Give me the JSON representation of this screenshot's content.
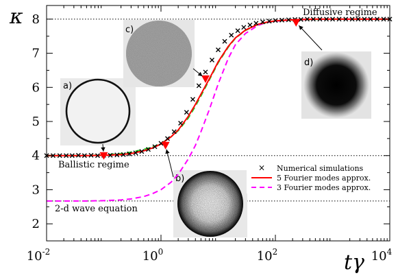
{
  "chart_data": {
    "type": "line",
    "x_scale": "log",
    "xlim": [
      0.01,
      10000
    ],
    "ylim": [
      1.5,
      8.4
    ],
    "xlabel": "tγ",
    "ylabel": "κ",
    "x_ticks": [
      {
        "value": 0.01,
        "base": "10",
        "exp": "-2"
      },
      {
        "value": 1,
        "base": "10",
        "exp": "0"
      },
      {
        "value": 100,
        "base": "10",
        "exp": "2"
      },
      {
        "value": 10000,
        "base": "10",
        "exp": "4"
      }
    ],
    "y_ticks": [
      "2",
      "3",
      "4",
      "5",
      "6",
      "7",
      "8"
    ],
    "reference_lines": [
      {
        "y": 8,
        "label": "Diffusive regime"
      },
      {
        "y": 4,
        "label": "Ballistic regime"
      },
      {
        "y": 2.67,
        "label": "2-d wave equation"
      }
    ],
    "series": [
      {
        "name": "Numerical simulations",
        "marker": "x",
        "color": "#000000",
        "x": [
          0.01,
          0.013,
          0.017,
          0.022,
          0.028,
          0.036,
          0.046,
          0.06,
          0.078,
          0.1,
          0.13,
          0.17,
          0.22,
          0.28,
          0.36,
          0.46,
          0.6,
          0.78,
          1.0,
          1.3,
          1.7,
          2.2,
          2.8,
          3.6,
          4.6,
          6.0,
          7.8,
          10,
          13,
          17,
          22,
          28,
          36,
          46,
          60,
          78,
          100,
          130,
          170,
          220,
          280,
          360,
          460,
          600,
          780,
          1000,
          1300,
          1700,
          2200,
          2800,
          3600,
          4600,
          6000,
          7800,
          10000
        ],
        "y": [
          4.0,
          4.0,
          4.0,
          4.0,
          4.0,
          4.01,
          4.0,
          4.01,
          4.0,
          4.01,
          4.01,
          4.02,
          4.03,
          4.05,
          4.08,
          4.12,
          4.18,
          4.26,
          4.36,
          4.5,
          4.7,
          4.95,
          5.27,
          5.65,
          6.05,
          6.45,
          6.8,
          7.1,
          7.35,
          7.53,
          7.66,
          7.76,
          7.83,
          7.88,
          7.92,
          7.94,
          7.96,
          7.97,
          7.98,
          7.99,
          7.99,
          8.0,
          8.0,
          8.0,
          8.0,
          8.0,
          8.0,
          8.0,
          8.0,
          8.0,
          8.0,
          8.0,
          8.0,
          8.0,
          8.0
        ]
      },
      {
        "name": "5 Fourier modes approx.",
        "style": "solid",
        "color": "#ff0000",
        "x": [
          0.01,
          0.02,
          0.05,
          0.1,
          0.2,
          0.3,
          0.5,
          0.7,
          1.0,
          1.5,
          2.0,
          3.0,
          4.0,
          5.0,
          7.0,
          10,
          15,
          20,
          30,
          50,
          70,
          100,
          200,
          300,
          500,
          1000,
          3000,
          10000
        ],
        "y": [
          4.0,
          4.0,
          4.0,
          4.01,
          4.03,
          4.06,
          4.14,
          4.22,
          4.34,
          4.55,
          4.75,
          5.15,
          5.5,
          5.8,
          6.25,
          6.75,
          7.2,
          7.45,
          7.68,
          7.85,
          7.91,
          7.95,
          7.98,
          7.99,
          8.0,
          8.0,
          8.0,
          8.0
        ]
      },
      {
        "name": "",
        "style": "dashed",
        "color": "#22cc22",
        "x": [
          0.01,
          0.05,
          0.1,
          0.2,
          0.3,
          0.5,
          0.7,
          1.0,
          1.5,
          2.0,
          3.0,
          4.0,
          5.0,
          7.0,
          10,
          15,
          20,
          30,
          50,
          100,
          300,
          1000,
          10000
        ],
        "y": [
          4.0,
          4.0,
          4.02,
          4.06,
          4.1,
          4.18,
          4.25,
          4.35,
          4.55,
          4.73,
          5.1,
          5.45,
          5.75,
          6.22,
          6.72,
          7.18,
          7.44,
          7.67,
          7.85,
          7.95,
          7.99,
          8.0,
          8.0
        ]
      },
      {
        "name": "3 Fourier modes approx.",
        "style": "dashed",
        "color": "#ff00ff",
        "x": [
          0.01,
          0.05,
          0.1,
          0.2,
          0.3,
          0.5,
          0.7,
          1.0,
          1.5,
          2.0,
          3.0,
          4.0,
          5.0,
          7.0,
          10,
          15,
          20,
          30,
          50,
          70,
          100,
          200,
          300,
          1000,
          10000
        ],
        "y": [
          2.67,
          2.67,
          2.68,
          2.7,
          2.73,
          2.8,
          2.88,
          3.0,
          3.22,
          3.45,
          3.9,
          4.3,
          4.7,
          5.35,
          6.1,
          6.85,
          7.25,
          7.58,
          7.82,
          7.9,
          7.94,
          7.98,
          7.99,
          8.0,
          8.0
        ]
      }
    ],
    "special_points": {
      "color": "#ff0000",
      "marker": "triangle-down",
      "x": [
        0.1,
        1.2,
        6.0,
        230
      ],
      "y": [
        4.0,
        4.3,
        6.25,
        7.9
      ]
    },
    "insets": [
      {
        "label": "a)",
        "pattern": "ring",
        "points_to": [
          0.1,
          4.0
        ]
      },
      {
        "label": "b)",
        "pattern": "filled-dark-edge",
        "points_to": [
          1.2,
          4.3
        ]
      },
      {
        "label": "c)",
        "pattern": "uniform-gray",
        "points_to": [
          6.0,
          6.25
        ]
      },
      {
        "label": "d)",
        "pattern": "gaussian-blob",
        "points_to": [
          230,
          7.9
        ]
      }
    ]
  }
}
